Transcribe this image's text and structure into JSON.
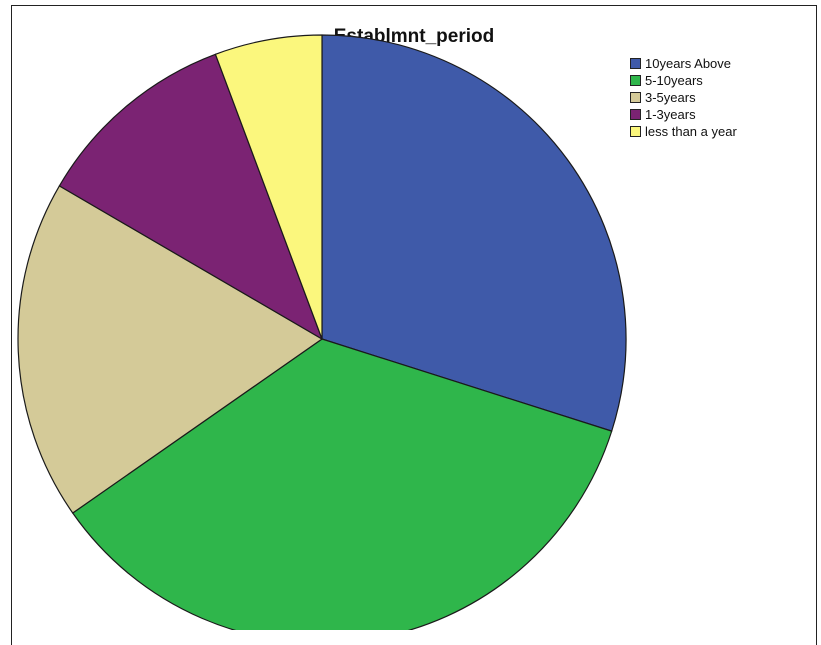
{
  "chart_data": {
    "type": "pie",
    "title": "Establmnt_period",
    "slices": [
      {
        "label": "10years Above",
        "value": 29.9,
        "color": "#3f5aa9"
      },
      {
        "label": "5-10years",
        "value": 35.4,
        "color": "#2fb64b"
      },
      {
        "label": "3-5years",
        "value": 18.1,
        "color": "#d4ca98"
      },
      {
        "label": "1-3years",
        "value": 10.9,
        "color": "#7b2373"
      },
      {
        "label": "less than a year",
        "value": 5.7,
        "color": "#fbf77d"
      }
    ],
    "start_angle": "12 o'clock",
    "direction": "clockwise",
    "legend_position": "top-right"
  }
}
